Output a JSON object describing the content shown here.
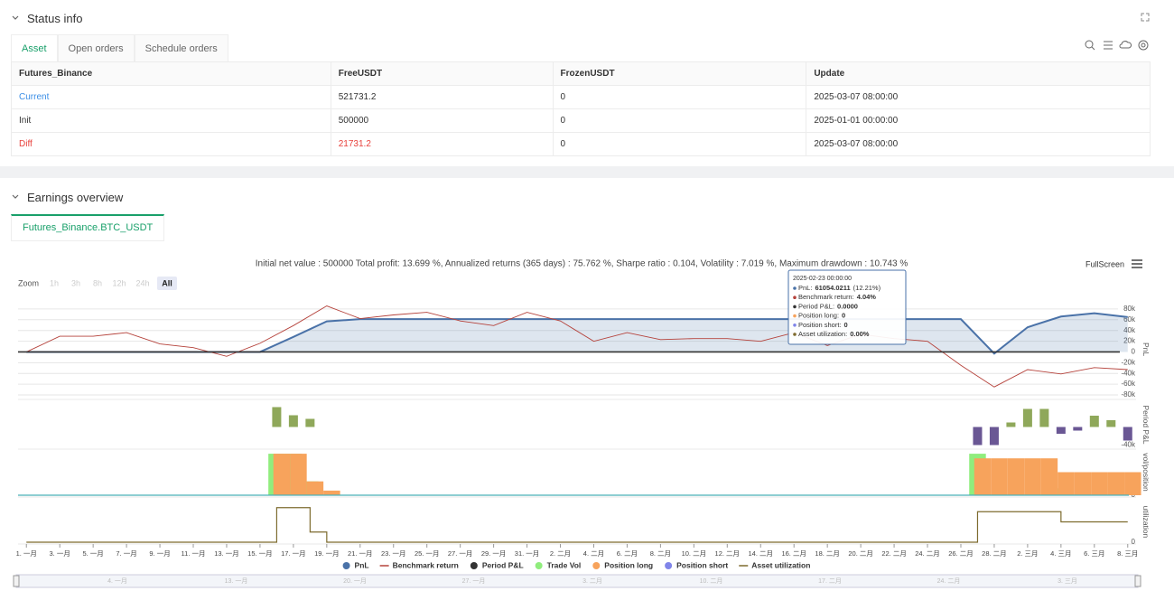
{
  "status_info": {
    "title": "Status info",
    "tabs": [
      "Asset",
      "Open orders",
      "Schedule orders"
    ],
    "table": {
      "headers": [
        "Futures_Binance",
        "FreeUSDT",
        "FrozenUSDT",
        "Update"
      ],
      "rows": [
        [
          "Current",
          "521731.2",
          "0",
          "2025-03-07 08:00:00"
        ],
        [
          "Init",
          "500000",
          "0",
          "2025-01-01 00:00:00"
        ],
        [
          "Diff",
          "21731.2",
          "0",
          "2025-03-07 08:00:00"
        ]
      ]
    }
  },
  "earnings": {
    "title": "Earnings overview",
    "tab": "Futures_Binance.BTC_USDT"
  },
  "chart_data": {
    "type": "line",
    "title": "Initial net value : 500000 Total profit: 13.699 %, Annualized returns (365 days) : 75.762 %, Sharpe ratio : 0.104, Volatility : 7.019 %, Maximum drawdown : 10.743 %",
    "fullscreen": "FullScreen",
    "zoom": {
      "label": "Zoom",
      "options": [
        "1h",
        "3h",
        "8h",
        "12h",
        "24h",
        "All"
      ]
    },
    "xlim": [
      0.5,
      67.5
    ],
    "xticks": [
      {
        "value": 1,
        "label": "1. 一月"
      },
      {
        "value": 3,
        "label": "3. 一月"
      },
      {
        "value": 5,
        "label": "5. 一月"
      },
      {
        "value": 7,
        "label": "7. 一月"
      },
      {
        "value": 9,
        "label": "9. 一月"
      },
      {
        "value": 11,
        "label": "11. 一月"
      },
      {
        "value": 13,
        "label": "13. 一月"
      },
      {
        "value": 15,
        "label": "15. 一月"
      },
      {
        "value": 17,
        "label": "17. 一月"
      },
      {
        "value": 19,
        "label": "19. 一月"
      },
      {
        "value": 21,
        "label": "21. 一月"
      },
      {
        "value": 23,
        "label": "23. 一月"
      },
      {
        "value": 25,
        "label": "25. 一月"
      },
      {
        "value": 27,
        "label": "27. 一月"
      },
      {
        "value": 29,
        "label": "29. 一月"
      },
      {
        "value": 31,
        "label": "31. 一月"
      },
      {
        "value": 33,
        "label": "2. 二月"
      },
      {
        "value": 35,
        "label": "4. 二月"
      },
      {
        "value": 37,
        "label": "6. 二月"
      },
      {
        "value": 39,
        "label": "8. 二月"
      },
      {
        "value": 41,
        "label": "10. 二月"
      },
      {
        "value": 43,
        "label": "12. 二月"
      },
      {
        "value": 45,
        "label": "14. 二月"
      },
      {
        "value": 47,
        "label": "16. 二月"
      },
      {
        "value": 49,
        "label": "18. 二月"
      },
      {
        "value": 51,
        "label": "20. 二月"
      },
      {
        "value": 53,
        "label": "22. 二月"
      },
      {
        "value": 55,
        "label": "24. 二月"
      },
      {
        "value": 57,
        "label": "26. 二月"
      },
      {
        "value": 59,
        "label": "28. 二月"
      },
      {
        "value": 61,
        "label": "2. 三月"
      },
      {
        "value": 63,
        "label": "4. 三月"
      },
      {
        "value": 65,
        "label": "6. 三月"
      },
      {
        "value": 67,
        "label": "8. 三月"
      }
    ],
    "panes": [
      {
        "title": "PnL",
        "ylim": [
          -85000,
          95000
        ],
        "y2lim": [
          -13.7,
          15.3
        ],
        "grid": true,
        "yticks": [
          {
            "value": 80000,
            "label": "80k"
          },
          {
            "value": 60000,
            "label": "60k"
          },
          {
            "value": 40000,
            "label": "40k"
          },
          {
            "value": 20000,
            "label": "20k"
          },
          0,
          {
            "value": -20000,
            "label": "-20k"
          },
          {
            "value": -40000,
            "label": "-40k"
          },
          {
            "value": -60000,
            "label": "-60k"
          },
          {
            "value": -80000,
            "label": "-80k"
          }
        ],
        "series": [
          {
            "name": "PnL",
            "type": "area",
            "color": "#4a72a8",
            "x": [
              1,
              3,
              5,
              7,
              9,
              11,
              13,
              15,
              17,
              19,
              21,
              23,
              25,
              27,
              29,
              31,
              33,
              35,
              37,
              39,
              41,
              43,
              45,
              47,
              49,
              51,
              53,
              55,
              57,
              59,
              61,
              63,
              65,
              67
            ],
            "values": [
              0,
              0,
              0,
              0,
              0,
              0,
              0,
              0,
              28000,
              57000,
              61054,
              61054,
              61054,
              61054,
              61054,
              61054,
              61054,
              61054,
              61054,
              61054,
              61054,
              61054,
              61054,
              61054,
              61054,
              61054,
              61054,
              61054,
              61054,
              -3000,
              46000,
              66000,
              72000,
              65000
            ]
          },
          {
            "name": "Benchmark return",
            "type": "line",
            "axis": "y2",
            "color": "#b5423b",
            "x": [
              1,
              3,
              5,
              7,
              9,
              11,
              13,
              15,
              17,
              19,
              21,
              23,
              25,
              27,
              29,
              31,
              33,
              35,
              37,
              39,
              41,
              43,
              45,
              47,
              49,
              51,
              53,
              55,
              57,
              59,
              61,
              63,
              65,
              67
            ],
            "values": [
              0,
              4.7,
              4.7,
              5.8,
              2.4,
              1.3,
              -1.3,
              2.6,
              7.9,
              13.8,
              10,
              11.1,
              11.9,
              9.3,
              7.9,
              11.9,
              9.3,
              3.2,
              5.8,
              3.7,
              4,
              4,
              3.2,
              5.8,
              1.9,
              5.3,
              4,
              3.2,
              -4,
              -10.5,
              -5.3,
              -6.6,
              -4.7,
              -5.3
            ]
          }
        ]
      },
      {
        "title": "Period P&L",
        "ylim": [
          -45000,
          55000
        ],
        "yticks": [
          {
            "value": -40000,
            "label": "-40k"
          }
        ],
        "series": [
          {
            "name": "Period P&L",
            "type": "column",
            "color": "#333333",
            "positive_color": "#8fa85a",
            "negative_color": "#6a5794",
            "x": [
              16,
              17,
              18,
              58,
              59,
              60,
              61,
              62,
              63,
              64,
              65,
              66,
              67
            ],
            "values": [
              44000,
              26000,
              18000,
              -40000,
              -40000,
              10000,
              40000,
              40000,
              -15000,
              -8000,
              25000,
              15000,
              -30000
            ]
          }
        ]
      },
      {
        "title": "vol/position",
        "ylim": [
          0,
          100
        ],
        "yticks": [
          0
        ],
        "series": [
          {
            "name": "Trade Vol",
            "type": "bar",
            "color": "#90ed7d",
            "x": [
              16,
              17,
              18,
              58,
              63
            ],
            "values": [
              90,
              90,
              30,
              90,
              15
            ]
          },
          {
            "name": "Position long",
            "type": "bar",
            "color": "#f7a35c",
            "x": [
              16,
              17,
              18,
              19,
              58,
              59,
              60,
              61,
              62,
              63,
              64,
              65,
              66,
              67
            ],
            "values": [
              90,
              90,
              30,
              10,
              80,
              80,
              80,
              80,
              80,
              50,
              50,
              50,
              50,
              50
            ]
          },
          {
            "name": "Position short",
            "type": "bar",
            "color": "#8085e9",
            "x": [],
            "values": []
          }
        ]
      },
      {
        "title": "utilization",
        "ylim": [
          0,
          100
        ],
        "yticks": [
          0
        ],
        "series": [
          {
            "name": "Asset utilization",
            "type": "step",
            "color": "#7d6b2e",
            "x": [
              1,
              16,
              18,
              19,
              58,
              63,
              67
            ],
            "values": [
              0,
              85,
              25,
              0,
              75,
              50,
              50
            ]
          }
        ]
      }
    ],
    "tooltip": {
      "time": "2025-02-23 00:00:00",
      "items": [
        {
          "label": "PnL:",
          "value": "61054.0211",
          "extra": "(12.21%)",
          "color": "#4a72a8"
        },
        {
          "label": "Benchmark return:",
          "value": "4.04%",
          "color": "#b5423b"
        },
        {
          "label": "Period P&L:",
          "value": "0.0000",
          "color": "#333333"
        },
        {
          "label": "Position long:",
          "value": "0",
          "color": "#f7a35c"
        },
        {
          "label": "Position short:",
          "value": "0",
          "color": "#8085e9"
        },
        {
          "label": "Asset utilization:",
          "value": "0.00%",
          "color": "#7d6b2e"
        }
      ]
    },
    "navigator": [
      "4. 一月",
      "13. 一月",
      "20. 一月",
      "27. 一月",
      "3. 二月",
      "10. 二月",
      "17. 二月",
      "24. 二月",
      "3. 三月"
    ]
  }
}
